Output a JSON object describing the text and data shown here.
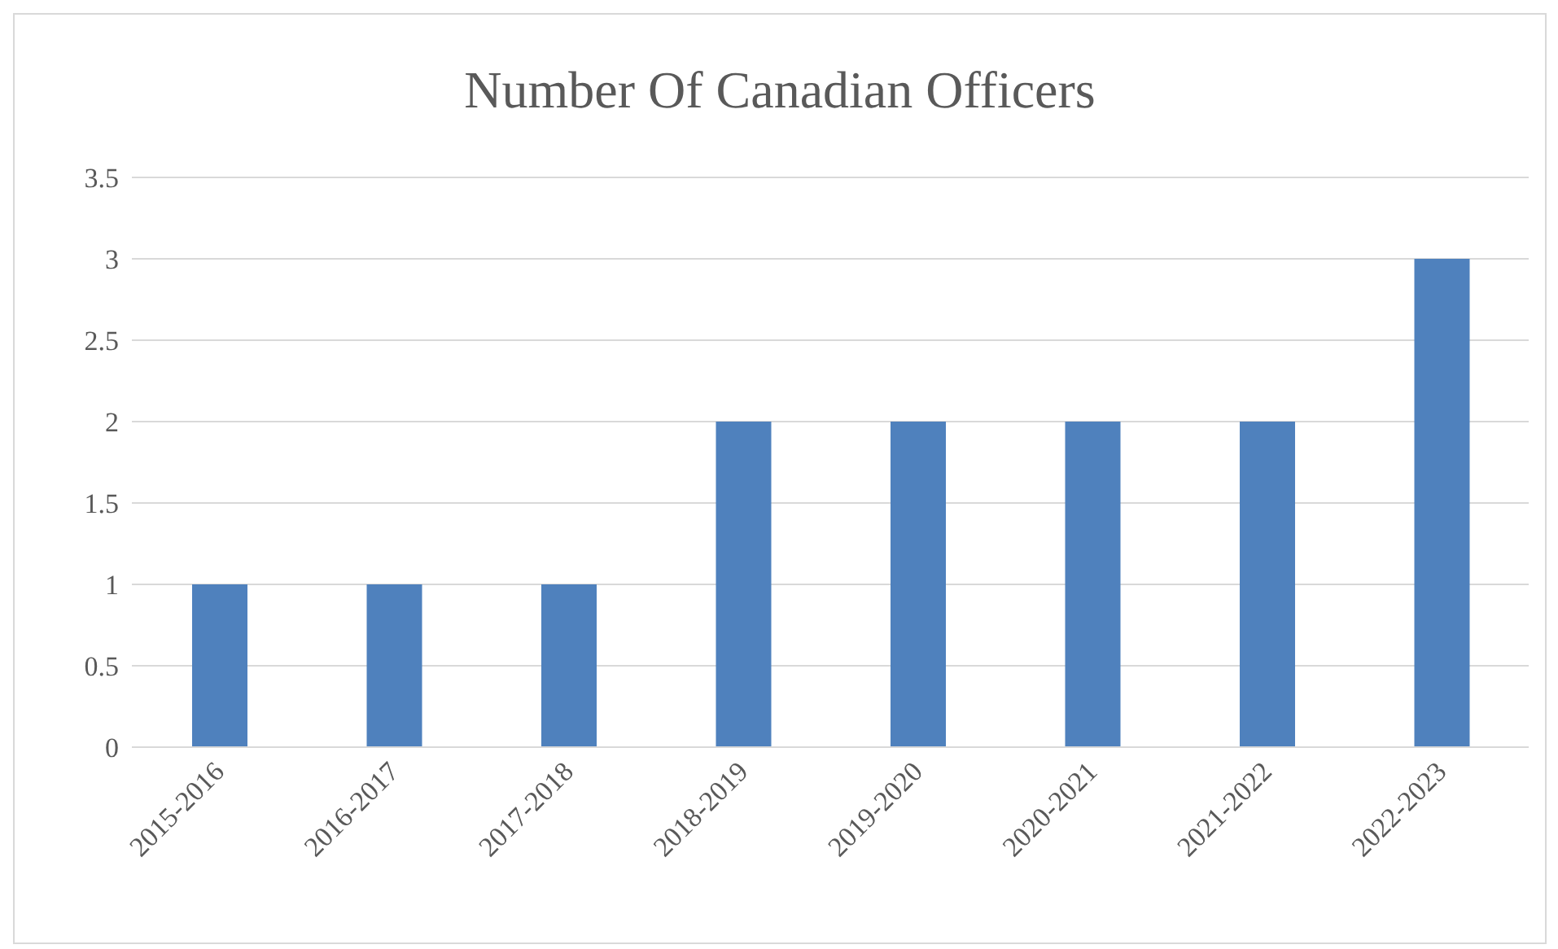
{
  "chart_data": {
    "type": "bar",
    "title": "Number Of Canadian Officers",
    "categories": [
      "2015-2016",
      "2016-2017",
      "2017-2018",
      "2018-2019",
      "2019-2020",
      "2020-2021",
      "2021-2022",
      "2022-2023"
    ],
    "values": [
      1,
      1,
      1,
      2,
      2,
      2,
      2,
      3
    ],
    "color": "#4f81bd",
    "ylim": [
      0,
      3.5
    ],
    "yticks": [
      0,
      0.5,
      1,
      1.5,
      2,
      2.5,
      3,
      3.5
    ],
    "grid": "y",
    "legend": false
  }
}
